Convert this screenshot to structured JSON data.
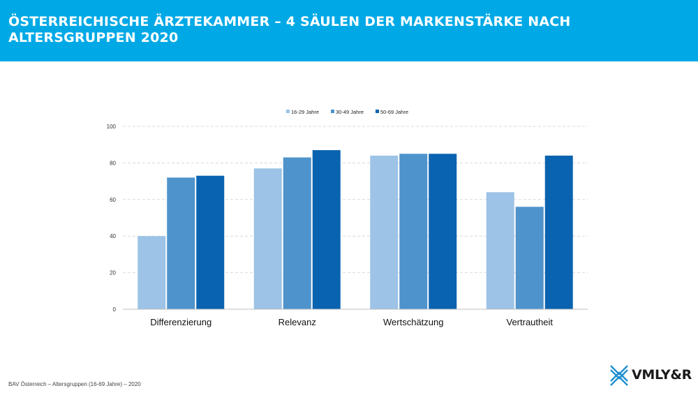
{
  "header": {
    "title": "ÖSTERREICHISCHE ÄRZTEKAMMER – 4 SÄULEN DER MARKENSTÄRKE NACH ALTERSGRUPPEN 2020"
  },
  "footer": {
    "source": "BAV Österreich – Altersgruppen (16-69 Jahre) – 2020"
  },
  "logo": {
    "text": "VMLY&R",
    "icon": "vmlyr-x-logo-icon"
  },
  "colors": {
    "header_bg": "#00a9e6",
    "series": [
      "#9dc3e6",
      "#4e93cc",
      "#0a63b0"
    ]
  },
  "chart_data": {
    "type": "bar",
    "categories": [
      "Differenzierung",
      "Relevanz",
      "Wertschätzung",
      "Vertrautheit"
    ],
    "series": [
      {
        "name": "16-29 Jahre",
        "values": [
          40,
          77,
          84,
          64
        ]
      },
      {
        "name": "30-49 Jahre",
        "values": [
          72,
          83,
          85,
          56
        ]
      },
      {
        "name": "50-69 Jahre",
        "values": [
          73,
          87,
          85,
          84
        ]
      }
    ],
    "yticks": [
      0,
      20,
      40,
      60,
      80,
      100
    ],
    "ylim": [
      0,
      100
    ],
    "legend": "top-center",
    "grid": true
  }
}
